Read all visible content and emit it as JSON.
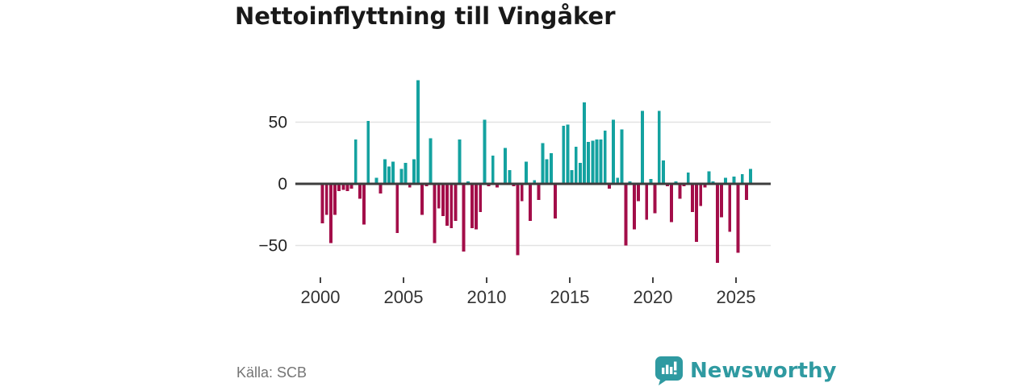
{
  "header": {
    "title": "Nettoinflyttning till Vingåker"
  },
  "footer": {
    "source": "Källa: SCB",
    "logo_text": "Newsworthy"
  },
  "colors": {
    "positive": "#14a2a0",
    "negative": "#a30e49",
    "axis_line": "#3d3d3d",
    "gridline": "#e2e2e2",
    "y_label": "#222222",
    "x_label": "#333333",
    "tick_mark": "#444444",
    "source_text": "#757575",
    "logo_teal": "#2f9aa1",
    "background": "#ffffff"
  },
  "chart_data": {
    "type": "bar",
    "title": "Nettoinflyttning till Vingåker",
    "x_unit": "quarter",
    "start_year": 2000,
    "quarters_per_year": 4,
    "x_tick_labels": [
      "2000",
      "2005",
      "2010",
      "2015",
      "2020",
      "2025"
    ],
    "y_ticks": [
      50,
      0,
      -50
    ],
    "y_tick_labels": [
      "50",
      "0",
      "−50"
    ],
    "ylim": [
      -70,
      90
    ],
    "grid": "horizontal",
    "legend": "none",
    "series": [
      {
        "name": "Nettoinflyttning",
        "values": [
          -32,
          -25,
          -48,
          -25,
          -6,
          -5,
          -6,
          -4,
          36,
          -12,
          -33,
          51,
          0,
          5,
          -8,
          20,
          14,
          18,
          -40,
          12,
          17,
          -3,
          20,
          84,
          -25,
          -2,
          37,
          -48,
          -20,
          -26,
          -34,
          -36,
          -30,
          36,
          -55,
          2,
          -36,
          -37,
          -23,
          52,
          -2,
          23,
          -3,
          0,
          29,
          11,
          -2,
          -58,
          -14,
          18,
          -30,
          3,
          -13,
          33,
          20,
          25,
          -28,
          0,
          47,
          48,
          11,
          30,
          17,
          66,
          34,
          35,
          36,
          36,
          43,
          -4,
          52,
          5,
          44,
          -50,
          2,
          -37,
          -14,
          59,
          -29,
          4,
          -24,
          59,
          19,
          -2,
          -31,
          2,
          -12,
          -2,
          9,
          -23,
          -47,
          -18,
          -3,
          10,
          2,
          -64,
          -27,
          5,
          -39,
          6,
          -56,
          8,
          -13,
          12
        ]
      }
    ]
  }
}
